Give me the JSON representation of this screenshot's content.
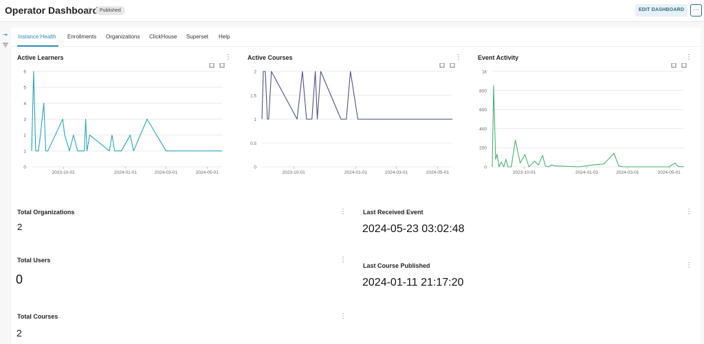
{
  "header": {
    "title": "Operator Dashboard",
    "star_icon": "star-outline-icon",
    "status_badge": "Published",
    "edit_label": "EDIT DASHBOARD",
    "more_label": "···"
  },
  "left_rail": {
    "expand_icon": "expand-panel-icon",
    "filter_icon": "filter-icon"
  },
  "tabs": [
    {
      "label": "Instance Health",
      "active": true
    },
    {
      "label": "Enrollments",
      "active": false
    },
    {
      "label": "Organizations",
      "active": false
    },
    {
      "label": "ClickHouse",
      "active": false
    },
    {
      "label": "Superset",
      "active": false
    },
    {
      "label": "Help",
      "active": false
    }
  ],
  "chart_data": [
    {
      "type": "line",
      "title": "Active Learners",
      "color": "#1fa7bf",
      "ylim": [
        0,
        6
      ],
      "yticks": [
        0,
        1,
        2,
        3,
        4,
        5,
        6
      ],
      "ytick_labels": [
        "0",
        "1",
        "2",
        "3",
        "4",
        "5",
        "6"
      ],
      "xlim": [
        "2023-08-15",
        "2024-05-23"
      ],
      "xticks": [
        "2023-10-01",
        "2024-01-01",
        "2024-03-01",
        "2024-05-01"
      ],
      "x": [
        "2023-08-15",
        "2023-08-18",
        "2023-08-21",
        "2023-08-25",
        "2023-08-28",
        "2023-09-02",
        "2023-09-05",
        "2023-09-08",
        "2023-09-30",
        "2023-10-03",
        "2023-10-10",
        "2023-10-16",
        "2023-10-22",
        "2023-10-26",
        "2023-11-01",
        "2023-11-03",
        "2023-11-05",
        "2023-11-09",
        "2023-12-08",
        "2023-12-12",
        "2023-12-16",
        "2023-12-26",
        "2024-01-08",
        "2024-01-13",
        "2024-02-02",
        "2024-03-01",
        "2024-05-23"
      ],
      "y": [
        1,
        6,
        1,
        1,
        2,
        4,
        1,
        1,
        3,
        2,
        1,
        2,
        1,
        1,
        1,
        3,
        1,
        2,
        1,
        2,
        1,
        1,
        2,
        1,
        3,
        1,
        1
      ],
      "grid": true
    },
    {
      "type": "line",
      "title": "Active Courses",
      "color": "#4c4f85",
      "ylim": [
        0,
        2
      ],
      "yticks": [
        0,
        0.5,
        1,
        1.5,
        2
      ],
      "ytick_labels": [
        "0",
        "0.5",
        "1",
        "1.5",
        "2"
      ],
      "xlim": [
        "2023-08-15",
        "2024-05-23"
      ],
      "xticks": [
        "2023-10-01",
        "2024-01-01",
        "2024-03-01",
        "2024-05-01"
      ],
      "x": [
        "2023-08-15",
        "2023-08-17",
        "2023-08-20",
        "2023-08-23",
        "2023-08-25",
        "2023-08-29",
        "2023-10-06",
        "2023-10-14",
        "2023-10-20",
        "2023-10-28",
        "2023-11-02",
        "2023-11-05",
        "2023-11-10",
        "2023-12-10",
        "2023-12-18",
        "2023-12-24",
        "2024-01-04",
        "2024-05-23"
      ],
      "y": [
        1,
        2,
        2,
        1,
        1,
        2,
        1,
        2,
        1,
        1,
        2,
        1,
        2,
        1,
        1,
        2,
        1,
        1
      ],
      "grid": true
    },
    {
      "type": "line",
      "title": "Event Activity",
      "color": "#42b36b",
      "ylim": [
        0,
        1000
      ],
      "yticks": [
        0,
        200,
        400,
        600,
        800,
        1000
      ],
      "ytick_labels": [
        "0",
        "200",
        "400",
        "600",
        "800",
        "1k"
      ],
      "xlim": [
        "2023-08-15",
        "2024-05-23"
      ],
      "xticks": [
        "2023-10-01",
        "2024-01-01",
        "2024-03-01",
        "2024-05-01"
      ],
      "x": [
        "2023-08-15",
        "2023-08-17",
        "2023-08-20",
        "2023-08-22",
        "2023-08-25",
        "2023-08-28",
        "2023-09-01",
        "2023-09-04",
        "2023-09-07",
        "2023-09-12",
        "2023-09-18",
        "2023-09-25",
        "2023-10-02",
        "2023-10-08",
        "2023-10-16",
        "2023-10-22",
        "2023-10-28",
        "2023-11-01",
        "2023-11-06",
        "2023-11-10",
        "2023-11-15",
        "2023-12-20",
        "2024-01-10",
        "2024-01-26",
        "2024-02-10",
        "2024-02-17",
        "2024-02-24",
        "2024-05-01",
        "2024-05-10",
        "2024-05-14",
        "2024-05-23"
      ],
      "y": [
        0,
        850,
        80,
        130,
        0,
        50,
        0,
        80,
        0,
        0,
        280,
        40,
        130,
        0,
        60,
        20,
        120,
        10,
        0,
        20,
        10,
        0,
        20,
        30,
        140,
        10,
        0,
        0,
        40,
        5,
        0
      ],
      "grid": true
    }
  ],
  "charts_ui": {
    "toolbar_icons": [
      "zoom-select-icon",
      "zoom-reset-icon"
    ]
  },
  "kpis": {
    "total_organizations": {
      "title": "Total Organizations",
      "value": "2"
    },
    "total_users": {
      "title": "Total Users",
      "value": "0"
    },
    "total_courses": {
      "title": "Total Courses",
      "value": "2"
    },
    "last_received_event": {
      "title": "Last Received Event",
      "value": "2024-05-23 03:02:48"
    },
    "last_course_published": {
      "title": "Last Course Published",
      "value": "2024-01-11 21:17:20"
    }
  }
}
